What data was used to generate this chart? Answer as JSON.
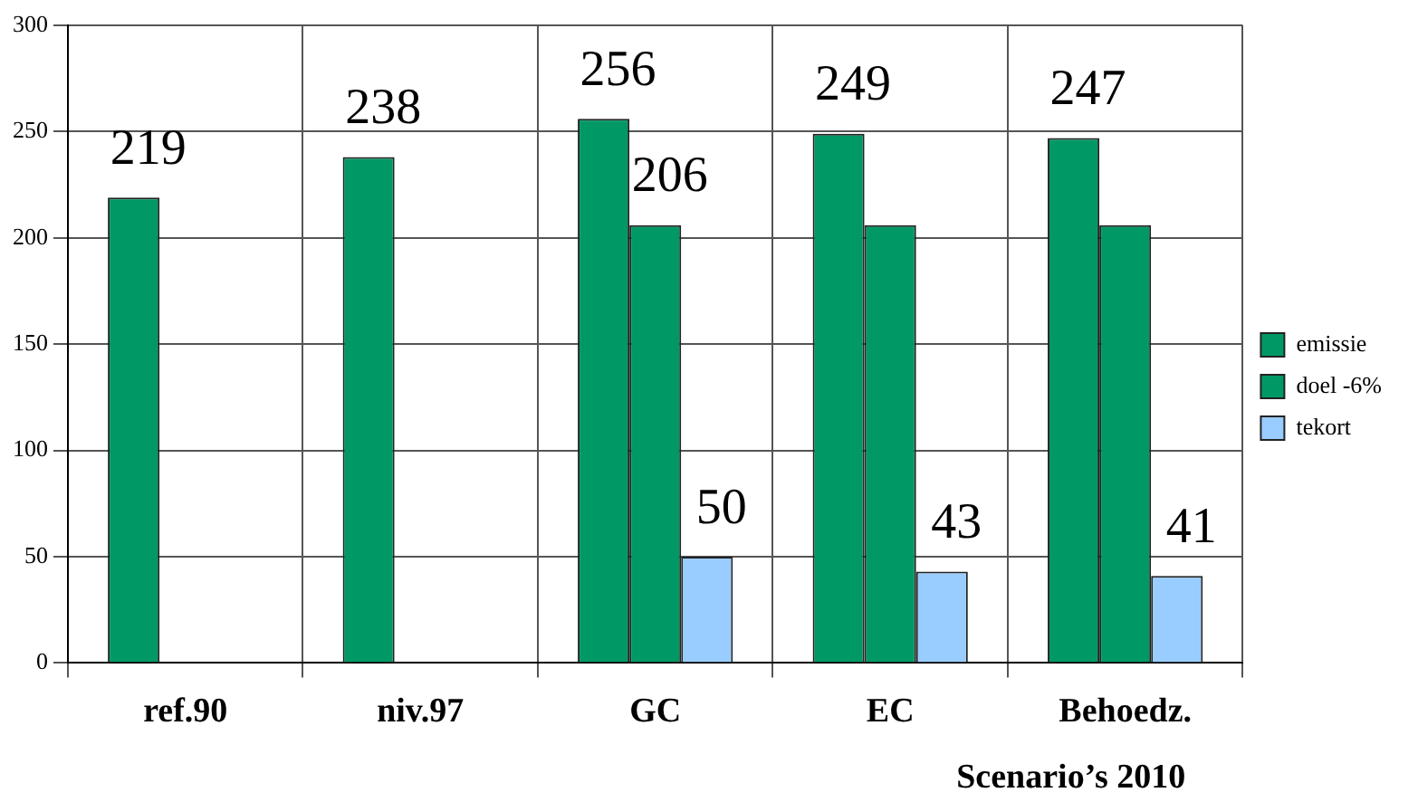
{
  "chart_data": {
    "type": "bar",
    "categories": [
      "ref.90",
      "niv.97",
      "GC",
      "EC",
      "Behoedz."
    ],
    "series": [
      {
        "name": "emissie",
        "color": "#009966",
        "values": [
          219,
          238,
          256,
          249,
          247
        ],
        "value_labels": [
          "219",
          "238",
          "256",
          "249",
          "247"
        ]
      },
      {
        "name": "doel -6%",
        "color": "#009966",
        "values": [
          null,
          null,
          206,
          206,
          206
        ],
        "value_labels": [
          null,
          null,
          "206",
          null,
          null
        ]
      },
      {
        "name": "tekort",
        "color": "#99ccff",
        "values": [
          null,
          null,
          50,
          43,
          41
        ],
        "value_labels": [
          null,
          null,
          "50",
          "43",
          "41"
        ]
      }
    ],
    "ylim": [
      0,
      300
    ],
    "yticks": [
      0,
      50,
      100,
      150,
      200,
      250,
      300
    ],
    "grid": true,
    "legend": "right",
    "annotations": [
      "Scenario’s 2010"
    ]
  }
}
